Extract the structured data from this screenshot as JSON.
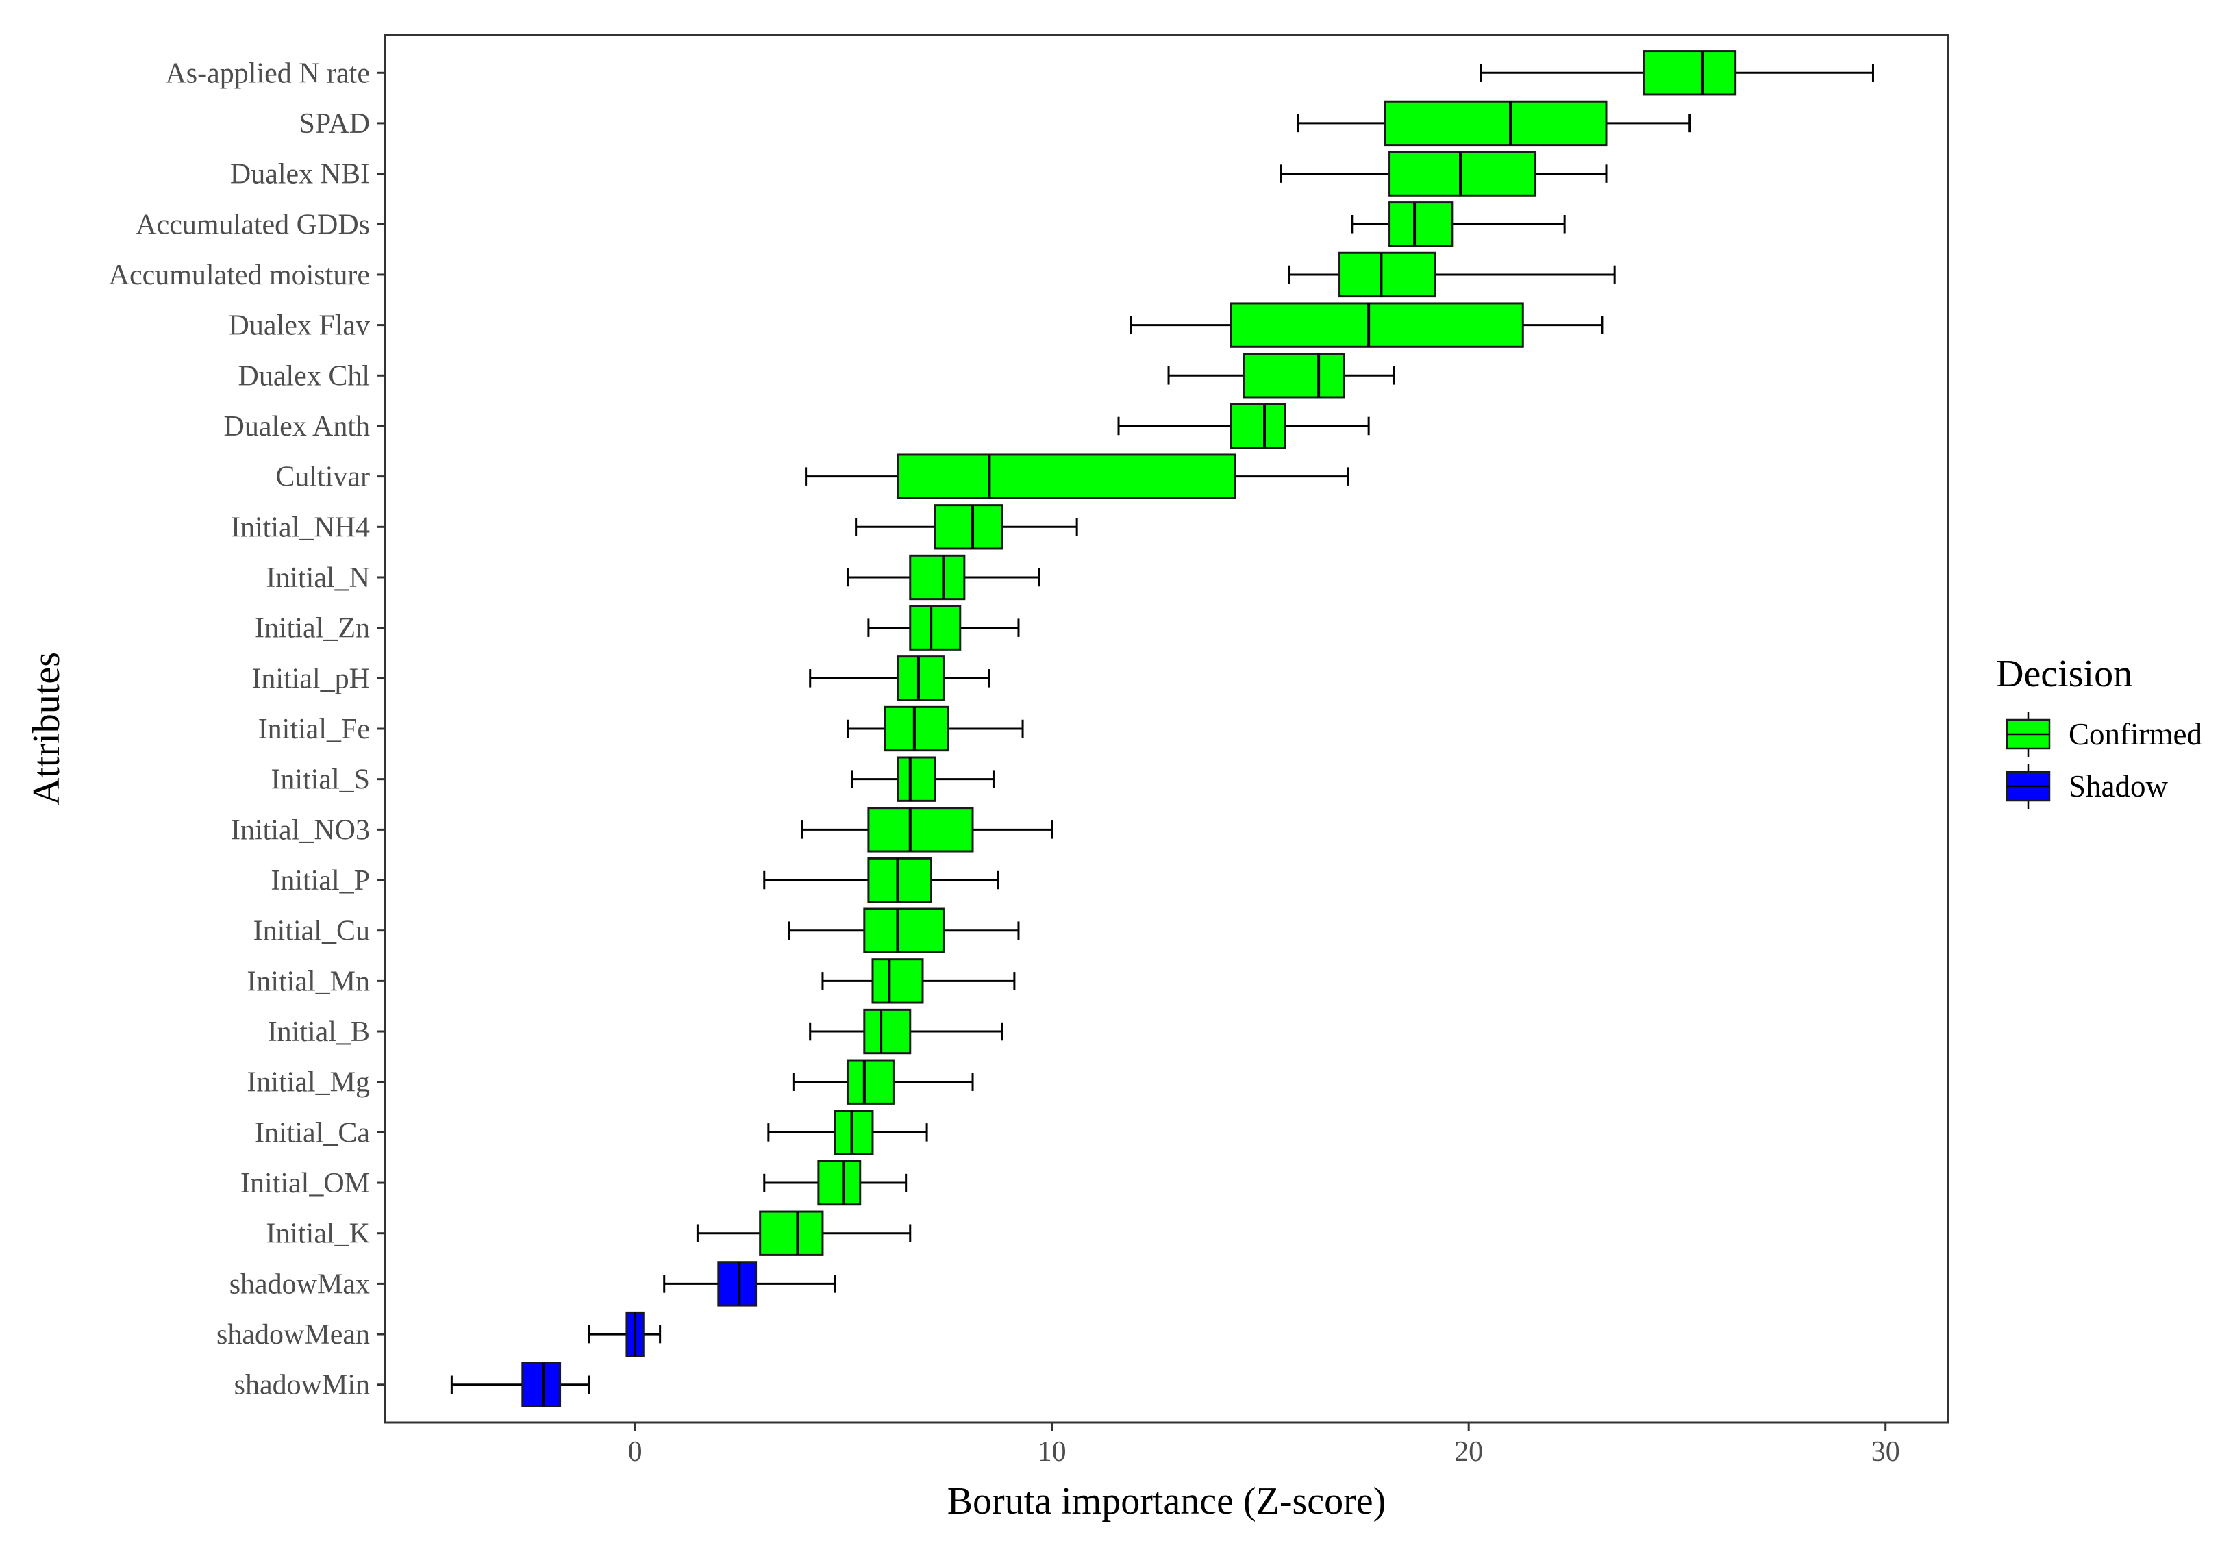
{
  "chart_data": {
    "type": "boxplot",
    "orientation": "horizontal",
    "xlabel": "Boruta importance (Z-score)",
    "ylabel": "Attributes",
    "xlim": [
      -6,
      31.5
    ],
    "xticks": [
      0,
      10,
      20,
      30
    ],
    "grid": false,
    "legend": {
      "title": "Decision",
      "placement": "right",
      "entries": [
        {
          "label": "Confirmed",
          "color": "#00ff00"
        },
        {
          "label": "Shadow",
          "color": "#0000ff"
        }
      ]
    },
    "colors": {
      "Confirmed": "#00ff00",
      "Shadow": "#0000ff"
    },
    "boxes": [
      {
        "attribute": "As-applied N rate",
        "decision": "Confirmed",
        "whisker_low": 20.3,
        "q1": 24.2,
        "median": 25.6,
        "q3": 26.4,
        "whisker_high": 29.7
      },
      {
        "attribute": "SPAD",
        "decision": "Confirmed",
        "whisker_low": 15.9,
        "q1": 18.0,
        "median": 21.0,
        "q3": 23.3,
        "whisker_high": 25.3
      },
      {
        "attribute": "Dualex NBI",
        "decision": "Confirmed",
        "whisker_low": 15.5,
        "q1": 18.1,
        "median": 19.8,
        "q3": 21.6,
        "whisker_high": 23.3
      },
      {
        "attribute": "Accumulated GDDs",
        "decision": "Confirmed",
        "whisker_low": 17.2,
        "q1": 18.1,
        "median": 18.7,
        "q3": 19.6,
        "whisker_high": 22.3
      },
      {
        "attribute": "Accumulated moisture",
        "decision": "Confirmed",
        "whisker_low": 15.7,
        "q1": 16.9,
        "median": 17.9,
        "q3": 19.2,
        "whisker_high": 23.5
      },
      {
        "attribute": "Dualex Flav",
        "decision": "Confirmed",
        "whisker_low": 11.9,
        "q1": 14.3,
        "median": 17.6,
        "q3": 21.3,
        "whisker_high": 23.2
      },
      {
        "attribute": "Dualex Chl",
        "decision": "Confirmed",
        "whisker_low": 12.8,
        "q1": 14.6,
        "median": 16.4,
        "q3": 17.0,
        "whisker_high": 18.2
      },
      {
        "attribute": "Dualex Anth",
        "decision": "Confirmed",
        "whisker_low": 11.6,
        "q1": 14.3,
        "median": 15.1,
        "q3": 15.6,
        "whisker_high": 17.6
      },
      {
        "attribute": "Cultivar",
        "decision": "Confirmed",
        "whisker_low": 4.1,
        "q1": 6.3,
        "median": 8.5,
        "q3": 14.4,
        "whisker_high": 17.1
      },
      {
        "attribute": "Initial_NH4",
        "decision": "Confirmed",
        "whisker_low": 5.3,
        "q1": 7.2,
        "median": 8.1,
        "q3": 8.8,
        "whisker_high": 10.6
      },
      {
        "attribute": "Initial_N",
        "decision": "Confirmed",
        "whisker_low": 5.1,
        "q1": 6.6,
        "median": 7.4,
        "q3": 7.9,
        "whisker_high": 9.7
      },
      {
        "attribute": "Initial_Zn",
        "decision": "Confirmed",
        "whisker_low": 5.6,
        "q1": 6.6,
        "median": 7.1,
        "q3": 7.8,
        "whisker_high": 9.2
      },
      {
        "attribute": "Initial_pH",
        "decision": "Confirmed",
        "whisker_low": 4.2,
        "q1": 6.3,
        "median": 6.8,
        "q3": 7.4,
        "whisker_high": 8.5
      },
      {
        "attribute": "Initial_Fe",
        "decision": "Confirmed",
        "whisker_low": 5.1,
        "q1": 6.0,
        "median": 6.7,
        "q3": 7.5,
        "whisker_high": 9.3
      },
      {
        "attribute": "Initial_S",
        "decision": "Confirmed",
        "whisker_low": 5.2,
        "q1": 6.3,
        "median": 6.6,
        "q3": 7.2,
        "whisker_high": 8.6
      },
      {
        "attribute": "Initial_NO3",
        "decision": "Confirmed",
        "whisker_low": 4.0,
        "q1": 5.6,
        "median": 6.6,
        "q3": 8.1,
        "whisker_high": 10.0
      },
      {
        "attribute": "Initial_P",
        "decision": "Confirmed",
        "whisker_low": 3.1,
        "q1": 5.6,
        "median": 6.3,
        "q3": 7.1,
        "whisker_high": 8.7
      },
      {
        "attribute": "Initial_Cu",
        "decision": "Confirmed",
        "whisker_low": 3.7,
        "q1": 5.5,
        "median": 6.3,
        "q3": 7.4,
        "whisker_high": 9.2
      },
      {
        "attribute": "Initial_Mn",
        "decision": "Confirmed",
        "whisker_low": 4.5,
        "q1": 5.7,
        "median": 6.1,
        "q3": 6.9,
        "whisker_high": 9.1
      },
      {
        "attribute": "Initial_B",
        "decision": "Confirmed",
        "whisker_low": 4.2,
        "q1": 5.5,
        "median": 5.9,
        "q3": 6.6,
        "whisker_high": 8.8
      },
      {
        "attribute": "Initial_Mg",
        "decision": "Confirmed",
        "whisker_low": 3.8,
        "q1": 5.1,
        "median": 5.5,
        "q3": 6.2,
        "whisker_high": 8.1
      },
      {
        "attribute": "Initial_Ca",
        "decision": "Confirmed",
        "whisker_low": 3.2,
        "q1": 4.8,
        "median": 5.2,
        "q3": 5.7,
        "whisker_high": 7.0
      },
      {
        "attribute": "Initial_OM",
        "decision": "Confirmed",
        "whisker_low": 3.1,
        "q1": 4.4,
        "median": 5.0,
        "q3": 5.4,
        "whisker_high": 6.5
      },
      {
        "attribute": "Initial_K",
        "decision": "Confirmed",
        "whisker_low": 1.5,
        "q1": 3.0,
        "median": 3.9,
        "q3": 4.5,
        "whisker_high": 6.6
      },
      {
        "attribute": "shadowMax",
        "decision": "Shadow",
        "whisker_low": 0.7,
        "q1": 2.0,
        "median": 2.5,
        "q3": 2.9,
        "whisker_high": 4.8
      },
      {
        "attribute": "shadowMean",
        "decision": "Shadow",
        "whisker_low": -1.1,
        "q1": -0.2,
        "median": 0.0,
        "q3": 0.2,
        "whisker_high": 0.6
      },
      {
        "attribute": "shadowMin",
        "decision": "Shadow",
        "whisker_low": -4.4,
        "q1": -2.7,
        "median": -2.2,
        "q3": -1.8,
        "whisker_high": -1.1
      }
    ]
  }
}
